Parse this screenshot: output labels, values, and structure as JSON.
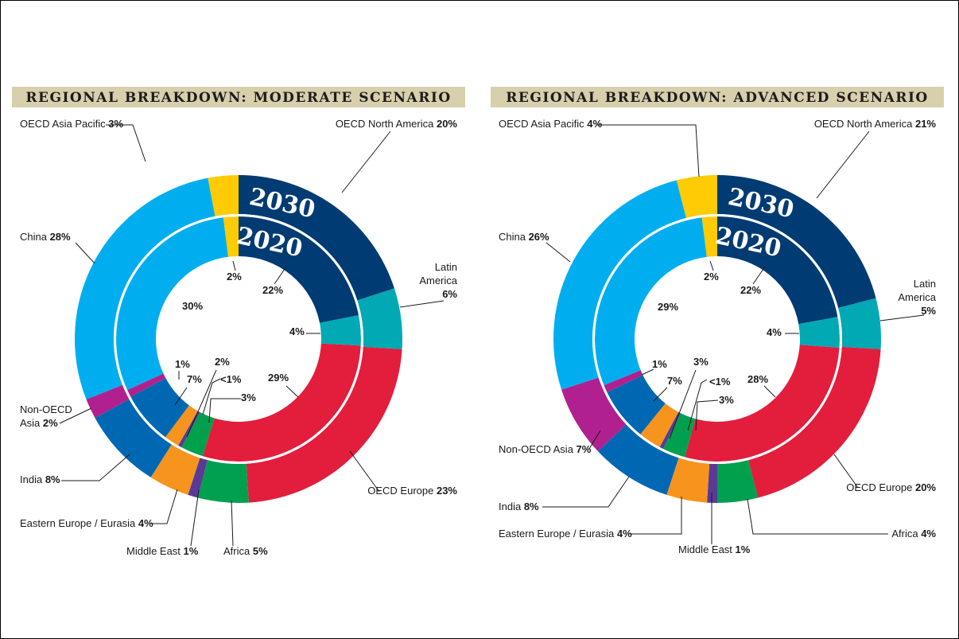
{
  "chart_data": [
    {
      "type": "pie",
      "title": "REGIONAL BREAKDOWN: MODERATE SCENARIO",
      "rings": [
        {
          "name": "2030",
          "values": {
            "oecd_na": 20,
            "latin_am": 6,
            "oecd_eu": 23,
            "africa": 5,
            "middle_east": 1,
            "ee_eurasia": 4,
            "india": 8,
            "non_oecd_asia": 2,
            "china": 28,
            "oecd_ap": 3
          }
        },
        {
          "name": "2020",
          "values": {
            "oecd_na": 22,
            "latin_am": 4,
            "oecd_eu": 29,
            "africa": 3,
            "middle_east": 0.5,
            "ee_eurasia": 2,
            "india": 7,
            "non_oecd_asia": 1,
            "china": 30,
            "oecd_ap": 2
          }
        }
      ],
      "outer_labels": [
        {
          "key": "oecd_ap",
          "name": "OECD Asia Pacific",
          "value": "3%"
        },
        {
          "key": "oecd_na",
          "name": "OECD North America",
          "value": "20%"
        },
        {
          "key": "latin_am",
          "name": "Latin America",
          "value": "6%"
        },
        {
          "key": "china",
          "name": "China",
          "value": "28%"
        },
        {
          "key": "non_oecd_asia",
          "name": "Non-OECD Asia",
          "value": "2%"
        },
        {
          "key": "india",
          "name": "India",
          "value": "8%"
        },
        {
          "key": "ee_eurasia",
          "name": "Eastern Europe / Eurasia",
          "value": "4%"
        },
        {
          "key": "middle_east",
          "name": "Middle East",
          "value": "1%"
        },
        {
          "key": "africa",
          "name": "Africa",
          "value": "5%"
        },
        {
          "key": "oecd_eu",
          "name": "OECD Europe",
          "value": "23%"
        }
      ],
      "inner_labels": [
        {
          "key": "oecd_ap",
          "value": "2%"
        },
        {
          "key": "oecd_na",
          "value": "22%"
        },
        {
          "key": "china",
          "value": "30%"
        },
        {
          "key": "latin_am",
          "value": "4%"
        },
        {
          "key": "non_oecd_asia",
          "value": "1%"
        },
        {
          "key": "ee_eurasia",
          "value": "2%"
        },
        {
          "key": "india",
          "value": "7%"
        },
        {
          "key": "middle_east",
          "value": "<1%"
        },
        {
          "key": "oecd_eu",
          "value": "29%"
        },
        {
          "key": "africa",
          "value": "3%"
        }
      ]
    },
    {
      "type": "pie",
      "title": "REGIONAL BREAKDOWN: ADVANCED SCENARIO",
      "rings": [
        {
          "name": "2030",
          "values": {
            "oecd_na": 21,
            "latin_am": 5,
            "oecd_eu": 20,
            "africa": 4,
            "middle_east": 1,
            "ee_eurasia": 4,
            "india": 8,
            "non_oecd_asia": 7,
            "china": 26,
            "oecd_ap": 4
          }
        },
        {
          "name": "2020",
          "values": {
            "oecd_na": 22,
            "latin_am": 4,
            "oecd_eu": 28,
            "africa": 3,
            "middle_east": 0.5,
            "ee_eurasia": 3,
            "india": 7,
            "non_oecd_asia": 1,
            "china": 29,
            "oecd_ap": 2
          }
        }
      ],
      "outer_labels": [
        {
          "key": "oecd_ap",
          "name": "OECD Asia Pacific",
          "value": "4%"
        },
        {
          "key": "oecd_na",
          "name": "OECD North America",
          "value": "21%"
        },
        {
          "key": "latin_am",
          "name": "Latin America",
          "value": "5%"
        },
        {
          "key": "china",
          "name": "China",
          "value": "26%"
        },
        {
          "key": "non_oecd_asia",
          "name": "Non-OECD Asia",
          "value": "7%"
        },
        {
          "key": "india",
          "name": "India",
          "value": "8%"
        },
        {
          "key": "ee_eurasia",
          "name": "Eastern Europe / Eurasia",
          "value": "4%"
        },
        {
          "key": "middle_east",
          "name": "Middle East",
          "value": "1%"
        },
        {
          "key": "africa",
          "name": "Africa",
          "value": "4%"
        },
        {
          "key": "oecd_eu",
          "name": "OECD Europe",
          "value": "20%"
        }
      ],
      "inner_labels": [
        {
          "key": "oecd_ap",
          "value": "2%"
        },
        {
          "key": "oecd_na",
          "value": "22%"
        },
        {
          "key": "china",
          "value": "29%"
        },
        {
          "key": "latin_am",
          "value": "4%"
        },
        {
          "key": "non_oecd_asia",
          "value": "1%"
        },
        {
          "key": "ee_eurasia",
          "value": "3%"
        },
        {
          "key": "india",
          "value": "7%"
        },
        {
          "key": "middle_east",
          "value": "<1%"
        },
        {
          "key": "oecd_eu",
          "value": "28%"
        },
        {
          "key": "africa",
          "value": "3%"
        }
      ]
    }
  ],
  "segment_order": [
    "oecd_na",
    "latin_am",
    "oecd_eu",
    "africa",
    "middle_east",
    "ee_eurasia",
    "india",
    "non_oecd_asia",
    "china",
    "oecd_ap"
  ],
  "colors": {
    "oecd_na": "#003b73",
    "latin_am": "#00a9b4",
    "oecd_eu": "#e31d3c",
    "africa": "#00a04f",
    "middle_east": "#5b3a96",
    "ee_eurasia": "#f7941d",
    "india": "#0068b3",
    "non_oecd_asia": "#b0218f",
    "china": "#00aeef",
    "oecd_ap": "#ffcb05"
  }
}
